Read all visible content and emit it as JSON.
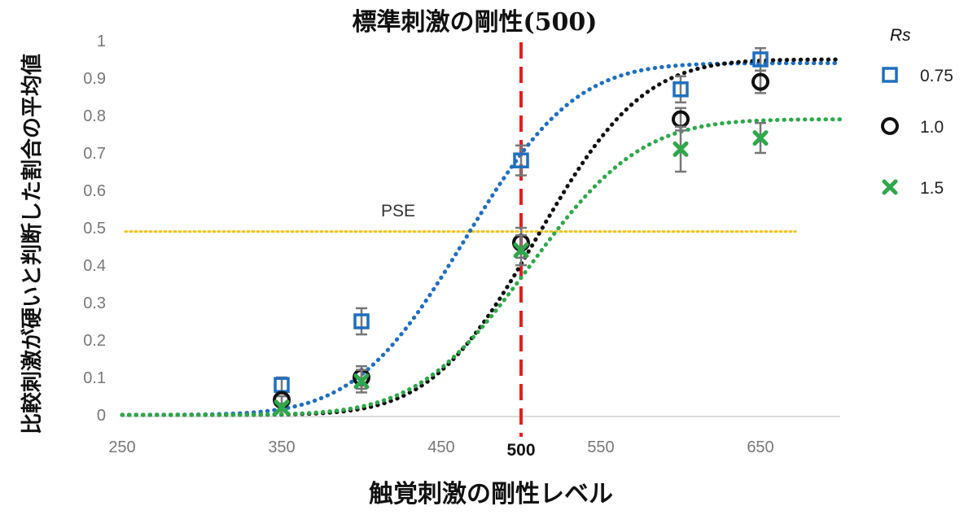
{
  "chart_data": {
    "type": "scatter",
    "title": "標準刺激の剛性(500)",
    "xlabel": "触覚刺激の剛性レベル",
    "ylabel": "比較刺激が硬いと判断した割合の平均値",
    "xlim": [
      250,
      700
    ],
    "ylim": [
      0,
      1
    ],
    "x_ticks": [
      "250",
      "350",
      "450",
      "500",
      "550",
      "650"
    ],
    "y_ticks": [
      "0",
      "0.1",
      "0.2",
      "0.3",
      "0.4",
      "0.5",
      "0.6",
      "0.7",
      "0.8",
      "0.9",
      "1"
    ],
    "x": [
      350,
      400,
      500,
      600,
      650
    ],
    "legend_title": "Rs",
    "legend_position": "right",
    "series": [
      {
        "name": "0.75",
        "marker": "square",
        "color": "#1f6fbf",
        "values": [
          0.08,
          0.25,
          0.68,
          0.87,
          0.95
        ],
        "errors": [
          0.02,
          0.035,
          0.04,
          0.035,
          0.03
        ],
        "fit": {
          "mu": 465,
          "sigma": 54,
          "asymptote": 0.94
        }
      },
      {
        "name": "1.0",
        "marker": "circle",
        "color": "#111111",
        "values": [
          0.04,
          0.1,
          0.46,
          0.79,
          0.89
        ],
        "errors": [
          0.01,
          0.03,
          0.04,
          0.03,
          0.03
        ],
        "fit": {
          "mu": 510,
          "sigma": 52,
          "asymptote": 0.95
        }
      },
      {
        "name": "1.5",
        "marker": "x",
        "color": "#2ea84a",
        "values": [
          0.02,
          0.09,
          0.44,
          0.71,
          0.74
        ],
        "errors": [
          0.01,
          0.03,
          0.04,
          0.06,
          0.04
        ],
        "fit": {
          "mu": 505,
          "sigma": 55,
          "asymptote": 0.79
        }
      }
    ],
    "reference_lines": [
      {
        "orientation": "horizontal",
        "value": 0.49,
        "color": "#f2c31a",
        "style": "dotted",
        "label": "PSE"
      },
      {
        "orientation": "vertical",
        "value": 500,
        "color": "#e02020",
        "style": "dashed"
      }
    ],
    "annotations": [
      "PSE"
    ],
    "grid": false,
    "error_bar_color": "#777777"
  }
}
